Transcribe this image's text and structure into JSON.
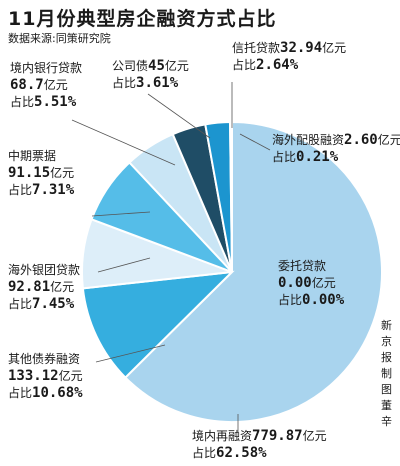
{
  "title": "11月份典型房企融资方式占比",
  "source": "数据来源:同策研究院",
  "credit": "新京报制图董辛",
  "chart_data": {
    "type": "pie",
    "unit": "亿元",
    "share_prefix": "占比",
    "slices": [
      {
        "name": "境内再融资",
        "value": 779.87,
        "value_text": "779.87",
        "percent": 62.58,
        "percent_text": "62.58%",
        "color": "#a9d4ee"
      },
      {
        "name": "其他债券融资",
        "value": 133.12,
        "value_text": "133.12",
        "percent": 10.68,
        "percent_text": "10.68%",
        "color": "#35aedf"
      },
      {
        "name": "海外银团贷款",
        "value": 92.81,
        "value_text": "92.81",
        "percent": 7.45,
        "percent_text": "7.45%",
        "color": "#ddeef9"
      },
      {
        "name": "中期票据",
        "value": 91.15,
        "value_text": "91.15",
        "percent": 7.31,
        "percent_text": "7.31%",
        "color": "#55bde8"
      },
      {
        "name": "境内银行贷款",
        "value": 68.7,
        "value_text": "68.7",
        "percent": 5.51,
        "percent_text": "5.51%",
        "color": "#c9e5f5"
      },
      {
        "name": "公司债",
        "value": 45,
        "value_text": "45",
        "percent": 3.61,
        "percent_text": "3.61%",
        "color": "#1f4d66"
      },
      {
        "name": "信托贷款",
        "value": 32.94,
        "value_text": "32.94",
        "percent": 2.64,
        "percent_text": "2.64%",
        "color": "#1c95cf"
      },
      {
        "name": "海外配股融资",
        "value": 2.6,
        "value_text": "2.60",
        "percent": 0.21,
        "percent_text": "0.21%",
        "color": "#7ec6ea"
      },
      {
        "name": "委托贷款",
        "value": 0,
        "value_text": "0.00",
        "percent": 0,
        "percent_text": "0.00%",
        "color": "#a9d4ee"
      }
    ]
  }
}
